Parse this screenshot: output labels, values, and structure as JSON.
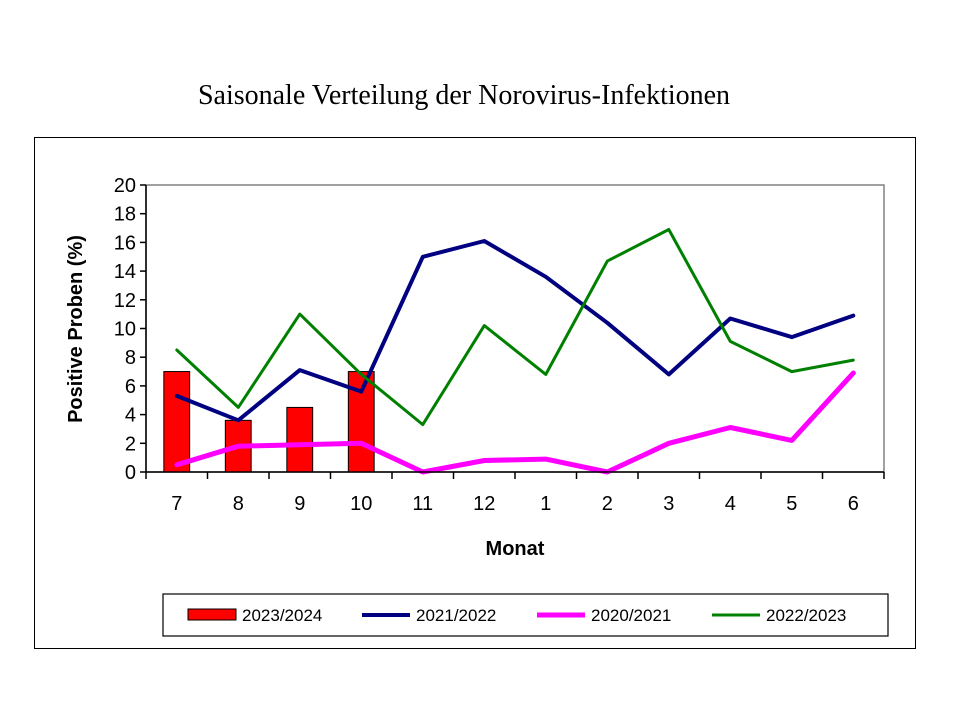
{
  "title": "Saisonale Verteilung der Norovirus-Infektionen",
  "chart_data": {
    "type": "bar+line",
    "categories": [
      "7",
      "8",
      "9",
      "10",
      "11",
      "12",
      "1",
      "2",
      "3",
      "4",
      "5",
      "6"
    ],
    "xlabel": "Monat",
    "ylabel": "Positive Proben (%)",
    "ylim": [
      0,
      20
    ],
    "yticks": [
      0,
      2,
      4,
      6,
      8,
      10,
      12,
      14,
      16,
      18,
      20
    ],
    "grid": false,
    "legend_position": "bottom",
    "series": [
      {
        "name": "2023/2024",
        "type": "bar",
        "color": "#ff0000",
        "values": [
          7.0,
          3.6,
          4.5,
          7.0,
          null,
          null,
          null,
          null,
          null,
          null,
          null,
          null
        ]
      },
      {
        "name": "2021/2022",
        "type": "line",
        "color": "#000080",
        "values": [
          5.3,
          3.6,
          7.1,
          5.6,
          15.0,
          16.1,
          13.6,
          10.4,
          6.8,
          10.7,
          9.4,
          10.9
        ]
      },
      {
        "name": "2020/2021",
        "type": "line",
        "color": "#ff00ff",
        "values": [
          0.5,
          1.8,
          1.9,
          2.0,
          0.0,
          0.8,
          0.9,
          0.0,
          2.0,
          3.1,
          2.2,
          6.9
        ]
      },
      {
        "name": "2022/2023",
        "type": "line",
        "color": "#008000",
        "values": [
          8.5,
          4.5,
          11.0,
          6.8,
          3.3,
          10.2,
          6.8,
          14.7,
          16.9,
          9.1,
          7.0,
          7.8
        ]
      }
    ]
  }
}
